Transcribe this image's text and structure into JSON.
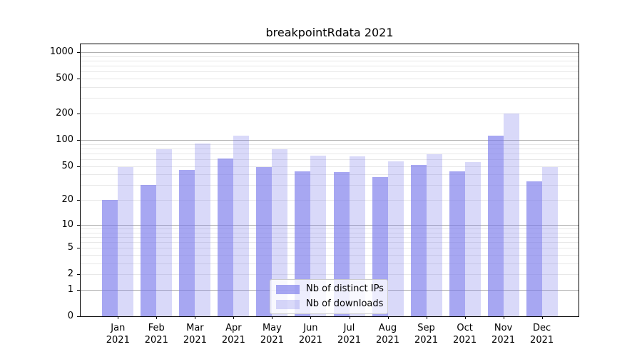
{
  "chart_data": {
    "type": "bar",
    "title": "breakpointRdata 2021",
    "year": "2021",
    "months": [
      "Jan",
      "Feb",
      "Mar",
      "Apr",
      "May",
      "Jun",
      "Jul",
      "Aug",
      "Sep",
      "Oct",
      "Nov",
      "Dec"
    ],
    "categories": [
      "Jan 2021",
      "Feb 2021",
      "Mar 2021",
      "Apr 2021",
      "May 2021",
      "Jun 2021",
      "Jul 2021",
      "Aug 2021",
      "Sep 2021",
      "Oct 2021",
      "Nov 2021",
      "Dec 2021"
    ],
    "series": [
      {
        "name": "Nb of distinct IPs",
        "values": [
          20,
          30,
          45,
          61,
          48,
          43,
          42,
          37,
          51,
          43,
          112,
          33
        ]
      },
      {
        "name": "Nb of downloads",
        "values": [
          48,
          78,
          90,
          112,
          78,
          66,
          64,
          56,
          68,
          55,
          200,
          48
        ]
      }
    ],
    "xlabel": "",
    "ylabel": "",
    "yscale": "log10(value+1)",
    "ylim": [
      0,
      1240
    ],
    "yticks": [
      1000,
      500,
      200,
      100,
      50,
      20,
      10,
      5,
      2,
      1,
      0
    ],
    "grid": {
      "major_lines": [
        1,
        10,
        100,
        1000
      ],
      "minor_lines": [
        2,
        3,
        4,
        5,
        6,
        7,
        8,
        9,
        20,
        30,
        40,
        50,
        60,
        70,
        80,
        90,
        200,
        300,
        400,
        500,
        600,
        700,
        800,
        900
      ]
    },
    "legend": {
      "position": "lower center inside plot"
    },
    "colors": {
      "bar_base": "#7878eb",
      "distinct_ips_fill": "rgba(120,120,235,0.65)",
      "downloads_fill": "rgba(120,120,235,0.28)",
      "major_grid": "#b0b0b0",
      "minor_grid": "#e8e8e8",
      "axis": "#000000",
      "background": "#ffffff"
    }
  }
}
